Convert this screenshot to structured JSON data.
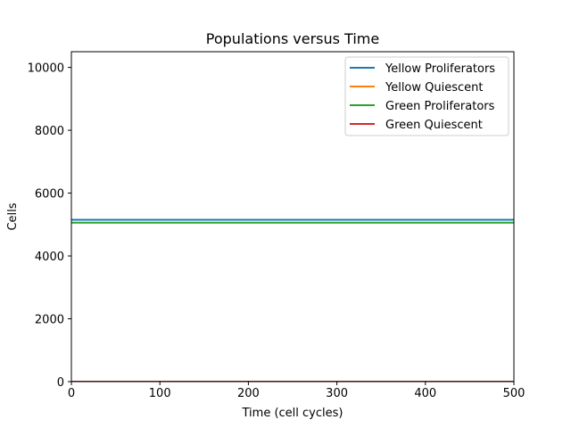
{
  "chart_data": {
    "type": "line",
    "title": "Populations versus Time",
    "xlabel": "Time (cell cycles)",
    "ylabel": "Cells",
    "xlim": [
      0,
      500
    ],
    "ylim": [
      0,
      10500
    ],
    "xticks": [
      0,
      100,
      200,
      300,
      400,
      500
    ],
    "yticks": [
      0,
      2000,
      4000,
      6000,
      8000,
      10000
    ],
    "grid": false,
    "legend_position": "top-right",
    "x": [
      0,
      500
    ],
    "series": [
      {
        "name": "Yellow Proliferators",
        "color": "#1f77b4",
        "values": [
          5150,
          5150
        ]
      },
      {
        "name": "Yellow Quiescent",
        "color": "#ff7f0e",
        "values": [
          0,
          0
        ]
      },
      {
        "name": "Green Proliferators",
        "color": "#2ca02c",
        "values": [
          5060,
          5060
        ]
      },
      {
        "name": "Green Quiescent",
        "color": "#d62728",
        "values": [
          0,
          0
        ]
      }
    ]
  }
}
